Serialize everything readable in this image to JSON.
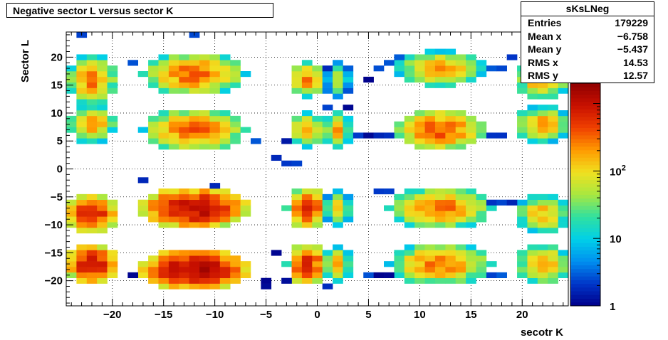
{
  "title": "Negative sector L versus sector K",
  "stats": {
    "name": "sKsLNeg",
    "rows": [
      {
        "label": "Entries",
        "value": "179229"
      },
      {
        "label": "Mean x",
        "value": "−6.758"
      },
      {
        "label": "Mean y",
        "value": "−5.437"
      },
      {
        "label": "RMS x",
        "value": "14.53"
      },
      {
        "label": "RMS y",
        "value": "12.57"
      }
    ]
  },
  "chart_data": {
    "type": "heatmap",
    "xlabel": "secotr K",
    "ylabel": "Sector L",
    "xlim": [
      -24.5,
      24.5
    ],
    "ylim": [
      -24.5,
      24.5
    ],
    "x_ticks": [
      -20,
      -15,
      -10,
      -5,
      0,
      5,
      10,
      15,
      20
    ],
    "x_tick_labels": [
      "−20",
      "−15",
      "−10",
      "−5",
      "0",
      "5",
      "10",
      "15",
      "20"
    ],
    "y_ticks": [
      20,
      15,
      10,
      5,
      0,
      -5,
      -10,
      -15,
      -20
    ],
    "y_tick_labels": [
      "20",
      "15",
      "10",
      "5",
      "0",
      "−5",
      "−10",
      "−15",
      "−20"
    ],
    "z_scale": "log",
    "zlim": [
      1,
      2000
    ],
    "z_ticks": [
      1,
      10,
      100
    ],
    "z_tick_labels": [
      "1",
      "10",
      "10²"
    ],
    "grid": true,
    "colormap": [
      "#00008b",
      "#0035c8",
      "#0090f0",
      "#00d0e8",
      "#30e0a0",
      "#a8e840",
      "#f0e020",
      "#ff9a00",
      "#f04000",
      "#c81000",
      "#900000"
    ],
    "blobs": [
      {
        "cx": -22,
        "cy": 16,
        "rx": 2.2,
        "ry": 4,
        "peak": 300
      },
      {
        "cx": -22,
        "cy": 8,
        "rx": 2.2,
        "ry": 3,
        "peak": 200
      },
      {
        "cx": -22,
        "cy": -8,
        "rx": 2.5,
        "ry": 3.5,
        "peak": 700
      },
      {
        "cx": -22,
        "cy": -17,
        "rx": 2.5,
        "ry": 3.5,
        "peak": 900
      },
      {
        "cx": -12,
        "cy": 17,
        "rx": 4.5,
        "ry": 3.5,
        "peak": 350
      },
      {
        "cx": -12,
        "cy": 7,
        "rx": 4.5,
        "ry": 3.5,
        "peak": 350
      },
      {
        "cx": -12,
        "cy": -7,
        "rx": 5,
        "ry": 3.5,
        "peak": 1200
      },
      {
        "cx": -12,
        "cy": -18,
        "rx": 5,
        "ry": 3.5,
        "peak": 1500
      },
      {
        "cx": -1,
        "cy": 16,
        "rx": 1.6,
        "ry": 3,
        "peak": 250
      },
      {
        "cx": -1,
        "cy": 7,
        "rx": 1.6,
        "ry": 3,
        "peak": 200
      },
      {
        "cx": -1,
        "cy": -7,
        "rx": 1.8,
        "ry": 3.5,
        "peak": 700
      },
      {
        "cx": -1,
        "cy": -17,
        "rx": 1.8,
        "ry": 3.5,
        "peak": 700
      },
      {
        "cx": 2,
        "cy": 16,
        "rx": 1.2,
        "ry": 3,
        "peak": 60
      },
      {
        "cx": 2,
        "cy": 7,
        "rx": 1.2,
        "ry": 3,
        "peak": 200
      },
      {
        "cx": 2,
        "cy": -7,
        "rx": 1.2,
        "ry": 3,
        "peak": 120
      },
      {
        "cx": 2,
        "cy": -17,
        "rx": 1.3,
        "ry": 3,
        "peak": 150
      },
      {
        "cx": 12,
        "cy": 18,
        "rx": 4,
        "ry": 3,
        "peak": 200
      },
      {
        "cx": 12,
        "cy": 7,
        "rx": 4,
        "ry": 3.5,
        "peak": 400
      },
      {
        "cx": 12,
        "cy": -7,
        "rx": 4.5,
        "ry": 3.5,
        "peak": 300
      },
      {
        "cx": 12,
        "cy": -17,
        "rx": 4.5,
        "ry": 3.5,
        "peak": 300
      },
      {
        "cx": 22,
        "cy": 16,
        "rx": 2.5,
        "ry": 3.5,
        "peak": 200
      },
      {
        "cx": 22,
        "cy": 8,
        "rx": 2.5,
        "ry": 3,
        "peak": 200
      },
      {
        "cx": 22,
        "cy": -8,
        "rx": 2.5,
        "ry": 3.5,
        "peak": 150
      },
      {
        "cx": 22,
        "cy": -17,
        "rx": 2.5,
        "ry": 3.5,
        "peak": 200
      }
    ],
    "isolated_cells": [
      [
        -23,
        24
      ],
      [
        -12,
        24
      ],
      [
        -18,
        19
      ],
      [
        -7,
        17
      ],
      [
        -15,
        17
      ],
      [
        -20,
        15
      ],
      [
        -4,
        2
      ],
      [
        -8,
        6
      ],
      [
        -14,
        4
      ],
      [
        -6,
        5
      ],
      [
        -17,
        -2
      ],
      [
        -10,
        -3
      ],
      [
        -18,
        -19
      ],
      [
        -15,
        -19
      ],
      [
        -5,
        -21
      ],
      [
        -3,
        -20
      ],
      [
        -5,
        -20
      ],
      [
        -9,
        -20
      ],
      [
        -3,
        1
      ],
      [
        -2,
        1
      ],
      [
        -3,
        5
      ],
      [
        5,
        16
      ],
      [
        3,
        11
      ],
      [
        1,
        11
      ],
      [
        8,
        20
      ],
      [
        7,
        19
      ],
      [
        6,
        18
      ],
      [
        17,
        18
      ],
      [
        18,
        18
      ],
      [
        19,
        20
      ],
      [
        4,
        6
      ],
      [
        5,
        6
      ],
      [
        6,
        6
      ],
      [
        7,
        6
      ],
      [
        16,
        6
      ],
      [
        17,
        6
      ],
      [
        18,
        6
      ],
      [
        6,
        -4
      ],
      [
        7,
        -4
      ],
      [
        17,
        -6
      ],
      [
        18,
        -6
      ],
      [
        19,
        -6
      ],
      [
        5,
        -19
      ],
      [
        6,
        -19
      ],
      [
        7,
        -19
      ],
      [
        8,
        -19
      ],
      [
        17,
        -19
      ],
      [
        18,
        -19
      ],
      [
        -25,
        5
      ],
      [
        -25,
        14
      ],
      [
        -25,
        19
      ],
      [
        -4,
        -15
      ],
      [
        1,
        -21
      ]
    ]
  }
}
